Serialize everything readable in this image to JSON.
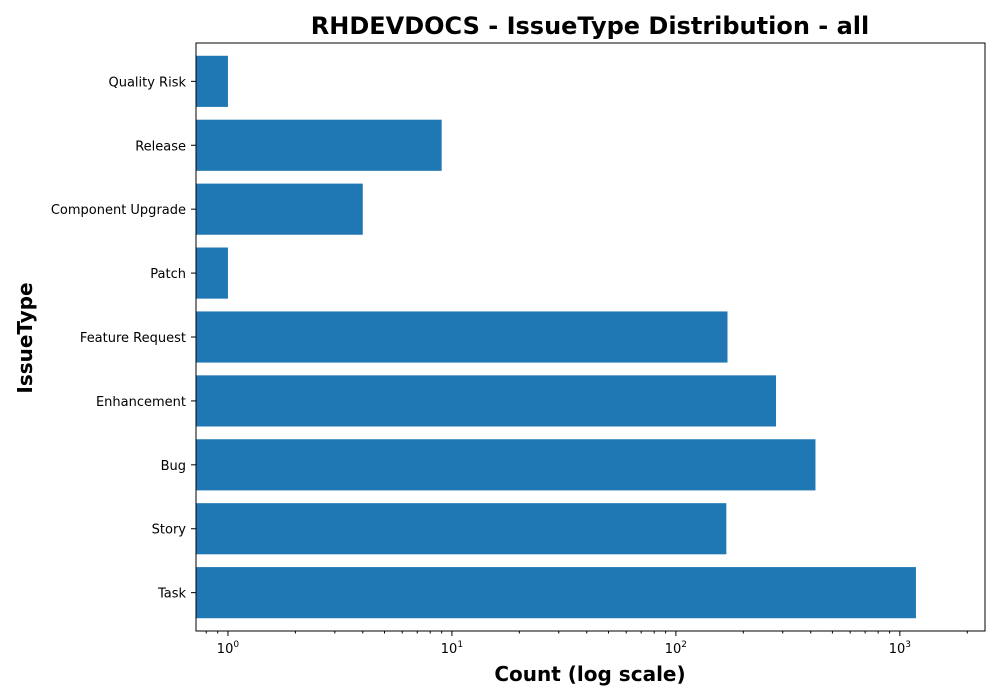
{
  "chart_data": {
    "type": "bar",
    "orientation": "horizontal",
    "title": "RHDEVDOCS - IssueType Distribution - all",
    "xlabel": "Count (log scale)",
    "ylabel": "IssueType",
    "xscale": "log",
    "xlim": [
      0.72,
      2400
    ],
    "categories": [
      "Task",
      "Story",
      "Bug",
      "Enhancement",
      "Feature Request",
      "Patch",
      "Component Upgrade",
      "Release",
      "Quality Risk"
    ],
    "values": [
      1180,
      168,
      420,
      280,
      170,
      1,
      4,
      9,
      1
    ],
    "x_major_ticks": [
      {
        "value": 1,
        "base": "10",
        "exp": "0"
      },
      {
        "value": 10,
        "base": "10",
        "exp": "1"
      },
      {
        "value": 100,
        "base": "10",
        "exp": "2"
      },
      {
        "value": 1000,
        "base": "10",
        "exp": "3"
      }
    ],
    "grid": false,
    "bar_color": "#1f77b4"
  }
}
